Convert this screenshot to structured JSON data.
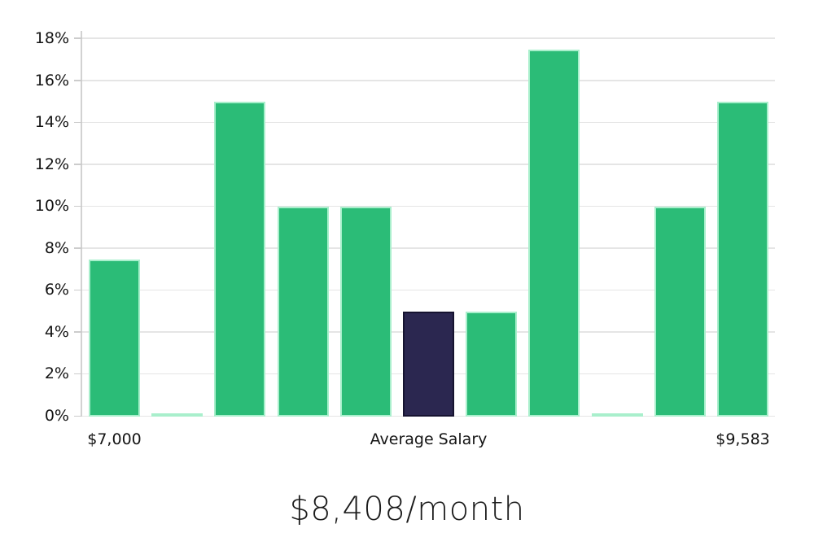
{
  "chart_data": {
    "type": "bar",
    "title": "$8,408/month",
    "xlabel": "",
    "ylabel": "",
    "legend": "none",
    "grid": true,
    "ylim": [
      0,
      18.4
    ],
    "y_ticks": [
      0,
      2,
      4,
      6,
      8,
      10,
      12,
      14,
      16,
      18
    ],
    "y_tick_suffix": "%",
    "bars": [
      {
        "value": 7.5,
        "x_label": "$7,000",
        "highlight": false
      },
      {
        "value": 0.1,
        "x_label": "",
        "highlight": false
      },
      {
        "value": 15,
        "x_label": "",
        "highlight": false
      },
      {
        "value": 10,
        "x_label": "",
        "highlight": false
      },
      {
        "value": 10,
        "x_label": "",
        "highlight": false
      },
      {
        "value": 5,
        "x_label": "Average Salary",
        "highlight": true
      },
      {
        "value": 5,
        "x_label": "",
        "highlight": false
      },
      {
        "value": 17.5,
        "x_label": "",
        "highlight": false
      },
      {
        "value": 0.1,
        "x_label": "",
        "highlight": false
      },
      {
        "value": 10,
        "x_label": "",
        "highlight": false
      },
      {
        "value": 15,
        "x_label": "$9,583",
        "highlight": false
      }
    ],
    "colors": {
      "bar_fill": "#2bbc77",
      "bar_edge": "#a9efcc",
      "highlight_fill": "#2b2750",
      "highlight_edge": "#161330",
      "gridline": "#e5e5e5",
      "axis": "#d2d2d2",
      "text": "#141414"
    }
  }
}
